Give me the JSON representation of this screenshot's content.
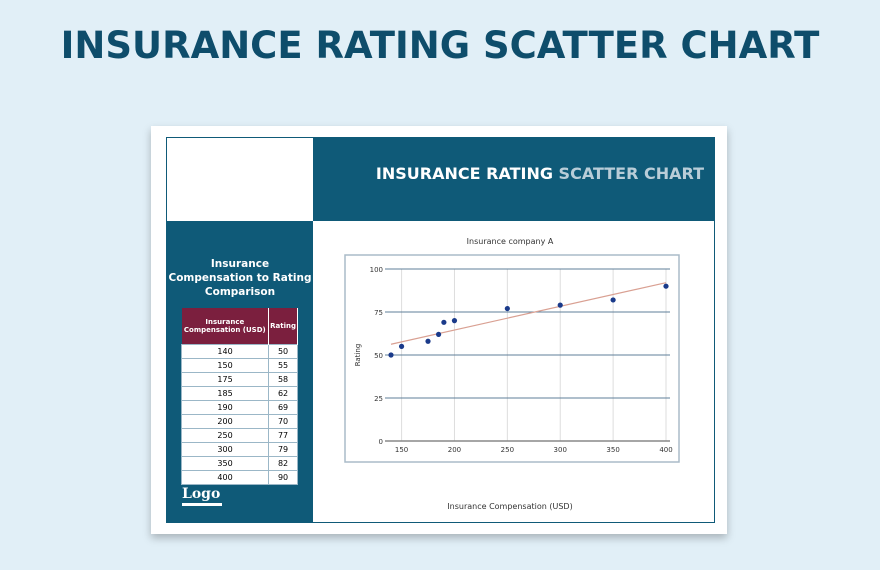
{
  "page_title": "INSURANCE RATING SCATTER CHART",
  "header": {
    "title_a": "INSURANCE RATING ",
    "title_b": "SCATTER CHART"
  },
  "sidebar": {
    "title": "Insurance Compensation to Rating Comparison",
    "columns": [
      "Insurance Compensation (USD)",
      "Rating"
    ],
    "logo": "Logo"
  },
  "colors": {
    "teal": "#0f5a78",
    "maroon": "#7b1f3e",
    "points": "#1a3a8a",
    "trend": "#d9a092"
  },
  "chart_data": {
    "type": "scatter",
    "title": "Insurance company A",
    "xlabel": "Insurance Compensation (USD)",
    "ylabel": "Rating",
    "x": [
      140,
      150,
      175,
      185,
      190,
      200,
      250,
      300,
      350,
      400
    ],
    "y": [
      50,
      55,
      58,
      62,
      69,
      70,
      77,
      79,
      82,
      90
    ],
    "xlim": [
      140,
      400
    ],
    "ylim": [
      0,
      100
    ],
    "xticks": [
      150,
      200,
      250,
      300,
      350,
      400
    ],
    "yticks": [
      0,
      25,
      50,
      75,
      100
    ],
    "trendline": true,
    "grid": true
  }
}
